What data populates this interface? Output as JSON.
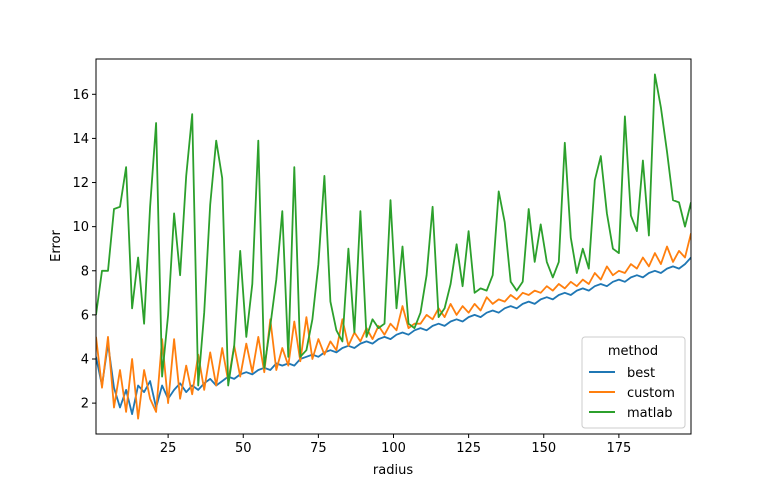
{
  "chart_data": {
    "type": "line",
    "xlabel": "radius",
    "ylabel": "Error",
    "xlim": [
      1,
      199
    ],
    "ylim": [
      0.6,
      17.6
    ],
    "xticks": [
      25,
      50,
      75,
      100,
      125,
      150,
      175
    ],
    "yticks": [
      2,
      4,
      6,
      8,
      10,
      12,
      14,
      16
    ],
    "legend": {
      "title": "method",
      "position": "lower right"
    },
    "series": [
      {
        "name": "best",
        "color": "#1f77b4",
        "x": [
          1,
          3,
          5,
          7,
          9,
          11,
          13,
          15,
          17,
          19,
          21,
          23,
          25,
          27,
          29,
          31,
          33,
          35,
          37,
          39,
          41,
          43,
          45,
          47,
          49,
          51,
          53,
          55,
          57,
          59,
          61,
          63,
          65,
          67,
          69,
          71,
          73,
          75,
          77,
          79,
          81,
          83,
          85,
          87,
          89,
          91,
          93,
          95,
          97,
          99,
          101,
          103,
          105,
          107,
          109,
          111,
          113,
          115,
          117,
          119,
          121,
          123,
          125,
          127,
          129,
          131,
          133,
          135,
          137,
          139,
          141,
          143,
          145,
          147,
          149,
          151,
          153,
          155,
          157,
          159,
          161,
          163,
          165,
          167,
          169,
          171,
          173,
          175,
          177,
          179,
          181,
          183,
          185,
          187,
          189,
          191,
          193,
          195,
          197,
          199
        ],
        "values": [
          4.1,
          2.8,
          4.7,
          2.7,
          1.8,
          2.6,
          1.5,
          2.8,
          2.5,
          3.0,
          1.8,
          2.8,
          2.2,
          2.6,
          2.9,
          2.5,
          2.8,
          2.6,
          2.9,
          3.1,
          2.8,
          3.0,
          3.2,
          3.1,
          3.3,
          3.4,
          3.3,
          3.5,
          3.6,
          3.5,
          3.8,
          3.7,
          3.8,
          3.7,
          4.0,
          4.1,
          4.2,
          4.1,
          4.3,
          4.4,
          4.3,
          4.5,
          4.6,
          4.5,
          4.7,
          4.8,
          4.7,
          4.9,
          5.0,
          4.9,
          5.1,
          5.2,
          5.1,
          5.3,
          5.4,
          5.3,
          5.5,
          5.6,
          5.5,
          5.7,
          5.8,
          5.7,
          5.9,
          6.0,
          5.9,
          6.1,
          6.2,
          6.1,
          6.3,
          6.4,
          6.3,
          6.5,
          6.6,
          6.5,
          6.7,
          6.8,
          6.7,
          6.9,
          7.0,
          6.9,
          7.1,
          7.2,
          7.1,
          7.3,
          7.4,
          7.3,
          7.5,
          7.6,
          7.5,
          7.7,
          7.8,
          7.7,
          7.9,
          8.0,
          7.9,
          8.1,
          8.2,
          8.1,
          8.3,
          8.6
        ]
      },
      {
        "name": "custom",
        "color": "#ff7f0e",
        "x": [
          1,
          3,
          5,
          7,
          9,
          11,
          13,
          15,
          17,
          19,
          21,
          23,
          25,
          27,
          29,
          31,
          33,
          35,
          37,
          39,
          41,
          43,
          45,
          47,
          49,
          51,
          53,
          55,
          57,
          59,
          61,
          63,
          65,
          67,
          69,
          71,
          73,
          75,
          77,
          79,
          81,
          83,
          85,
          87,
          89,
          91,
          93,
          95,
          97,
          99,
          101,
          103,
          105,
          107,
          109,
          111,
          113,
          115,
          117,
          119,
          121,
          123,
          125,
          127,
          129,
          131,
          133,
          135,
          137,
          139,
          141,
          143,
          145,
          147,
          149,
          151,
          153,
          155,
          157,
          159,
          161,
          163,
          165,
          167,
          169,
          171,
          173,
          175,
          177,
          179,
          181,
          183,
          185,
          187,
          189,
          191,
          193,
          195,
          197,
          199
        ],
        "values": [
          5.0,
          2.7,
          5.0,
          1.8,
          3.5,
          1.6,
          4.0,
          1.3,
          3.5,
          2.2,
          1.6,
          4.9,
          2.0,
          4.9,
          2.2,
          3.7,
          2.4,
          4.2,
          2.6,
          4.3,
          2.8,
          4.5,
          3.0,
          4.6,
          3.2,
          4.7,
          3.4,
          5.0,
          3.4,
          5.8,
          3.5,
          4.5,
          3.7,
          5.7,
          3.9,
          5.9,
          4.0,
          4.9,
          4.2,
          4.8,
          4.4,
          5.8,
          4.6,
          5.2,
          4.8,
          5.4,
          4.9,
          5.5,
          5.1,
          5.6,
          5.3,
          6.4,
          5.4,
          5.6,
          5.6,
          6.0,
          5.8,
          6.3,
          5.9,
          6.5,
          6.0,
          6.4,
          6.1,
          6.5,
          6.2,
          6.8,
          6.5,
          6.7,
          6.6,
          6.9,
          6.7,
          7.0,
          6.9,
          7.1,
          7.0,
          7.3,
          7.1,
          7.4,
          7.2,
          7.5,
          7.3,
          7.6,
          7.4,
          7.9,
          7.6,
          8.2,
          7.8,
          8.0,
          7.9,
          8.3,
          8.1,
          8.6,
          8.2,
          8.8,
          8.3,
          9.1,
          8.4,
          8.9,
          8.6,
          9.7
        ]
      },
      {
        "name": "matlab",
        "color": "#2ca02c",
        "x": [
          1,
          3,
          5,
          7,
          9,
          11,
          13,
          15,
          17,
          19,
          21,
          23,
          25,
          27,
          29,
          31,
          33,
          35,
          37,
          39,
          41,
          43,
          45,
          47,
          49,
          51,
          53,
          55,
          57,
          59,
          61,
          63,
          65,
          67,
          69,
          71,
          73,
          75,
          77,
          79,
          81,
          83,
          85,
          87,
          89,
          91,
          93,
          95,
          97,
          99,
          101,
          103,
          105,
          107,
          109,
          111,
          113,
          115,
          117,
          119,
          121,
          123,
          125,
          127,
          129,
          131,
          133,
          135,
          137,
          139,
          141,
          143,
          145,
          147,
          149,
          151,
          153,
          155,
          157,
          159,
          161,
          163,
          165,
          167,
          169,
          171,
          173,
          175,
          177,
          179,
          181,
          183,
          185,
          187,
          189,
          191,
          193,
          195,
          197,
          199
        ],
        "values": [
          6.0,
          8.0,
          8.0,
          10.8,
          10.9,
          12.7,
          6.3,
          8.6,
          5.6,
          10.9,
          14.7,
          3.2,
          6.0,
          10.6,
          7.8,
          12.3,
          15.1,
          2.8,
          6.1,
          11.0,
          13.9,
          12.2,
          2.8,
          4.6,
          8.9,
          5.0,
          7.4,
          13.9,
          3.6,
          5.5,
          7.6,
          10.7,
          4.1,
          12.7,
          4.1,
          4.4,
          5.8,
          8.3,
          12.3,
          6.6,
          5.3,
          4.8,
          9.0,
          5.2,
          10.7,
          5.0,
          5.8,
          5.4,
          5.6,
          11.2,
          6.3,
          9.1,
          5.6,
          5.4,
          6.1,
          7.8,
          10.9,
          5.9,
          6.3,
          7.4,
          9.2,
          7.3,
          9.8,
          7.0,
          7.2,
          7.1,
          7.8,
          11.6,
          10.2,
          7.5,
          7.1,
          7.5,
          10.8,
          8.4,
          10.1,
          8.4,
          7.7,
          8.4,
          13.8,
          9.5,
          7.9,
          9.0,
          8.1,
          12.1,
          13.2,
          10.6,
          9.0,
          8.8,
          15.0,
          10.5,
          9.8,
          13.0,
          9.6,
          16.9,
          15.4,
          13.4,
          11.2,
          11.1,
          10.0,
          11.1
        ]
      }
    ]
  }
}
